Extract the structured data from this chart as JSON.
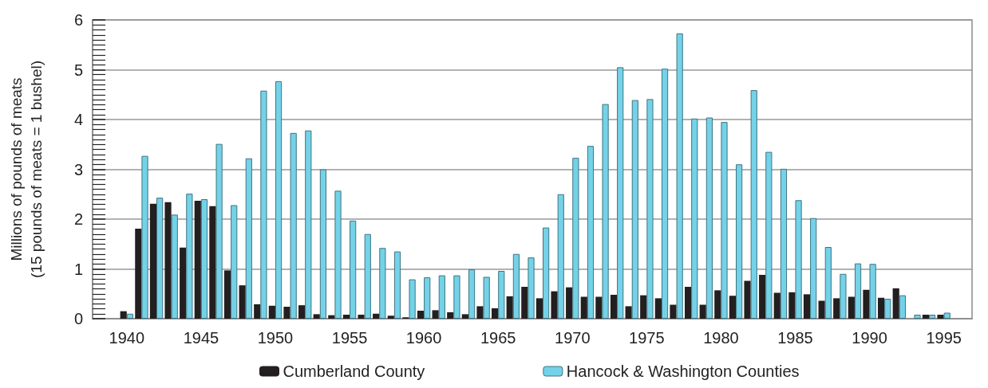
{
  "chart_data": {
    "type": "bar",
    "ylabel": "Millions of pounds of meats\n(15 pounds of meats = 1 bushel)",
    "x": [
      1940,
      1941,
      1942,
      1943,
      1944,
      1945,
      1946,
      1947,
      1948,
      1949,
      1950,
      1951,
      1952,
      1953,
      1954,
      1955,
      1956,
      1957,
      1958,
      1959,
      1960,
      1961,
      1962,
      1963,
      1964,
      1965,
      1966,
      1967,
      1968,
      1969,
      1970,
      1971,
      1972,
      1973,
      1974,
      1975,
      1976,
      1977,
      1978,
      1979,
      1980,
      1981,
      1982,
      1983,
      1984,
      1985,
      1986,
      1987,
      1988,
      1989,
      1990,
      1991,
      1992,
      1993,
      1994,
      1995
    ],
    "series": [
      {
        "name": "Cumberland County",
        "color": "#231f20",
        "values": [
          0.15,
          1.81,
          2.31,
          2.34,
          1.43,
          2.37,
          2.26,
          0.97,
          0.67,
          0.29,
          0.26,
          0.24,
          0.27,
          0.09,
          0.07,
          0.08,
          0.08,
          0.1,
          0.06,
          0.03,
          0.16,
          0.17,
          0.13,
          0.09,
          0.25,
          0.21,
          0.45,
          0.64,
          0.41,
          0.55,
          0.63,
          0.44,
          0.44,
          0.48,
          0.25,
          0.47,
          0.41,
          0.28,
          0.64,
          0.28,
          0.57,
          0.46,
          0.76,
          0.88,
          0.52,
          0.53,
          0.49,
          0.36,
          0.41,
          0.44,
          0.58,
          0.42,
          0.61,
          null,
          0.08,
          0.08
        ]
      },
      {
        "name": "Hancock & Washington Counties",
        "color": "#74d2e8",
        "values": [
          0.1,
          3.27,
          2.43,
          2.09,
          2.51,
          2.4,
          3.51,
          2.28,
          3.22,
          4.58,
          4.77,
          3.73,
          3.78,
          3.0,
          2.57,
          1.97,
          1.7,
          1.42,
          1.35,
          0.79,
          0.83,
          0.87,
          0.87,
          0.99,
          0.84,
          0.96,
          1.3,
          1.23,
          1.83,
          2.5,
          3.23,
          3.47,
          4.31,
          5.05,
          4.39,
          4.41,
          5.02,
          5.73,
          4.02,
          4.04,
          3.95,
          3.1,
          4.59,
          3.35,
          3.01,
          2.38,
          2.02,
          1.44,
          0.9,
          1.11,
          1.1,
          0.4,
          0.47,
          0.08,
          0.08,
          0.12
        ]
      }
    ],
    "xlim": [
      1937.7,
      1996.9
    ],
    "xticks": [
      1940,
      1945,
      1950,
      1955,
      1960,
      1965,
      1970,
      1975,
      1980,
      1985,
      1990,
      1995
    ],
    "ylim": [
      0,
      6
    ],
    "yticks": [
      0,
      1,
      2,
      3,
      4,
      5,
      6
    ],
    "grid": "y",
    "legend": "bottom"
  }
}
